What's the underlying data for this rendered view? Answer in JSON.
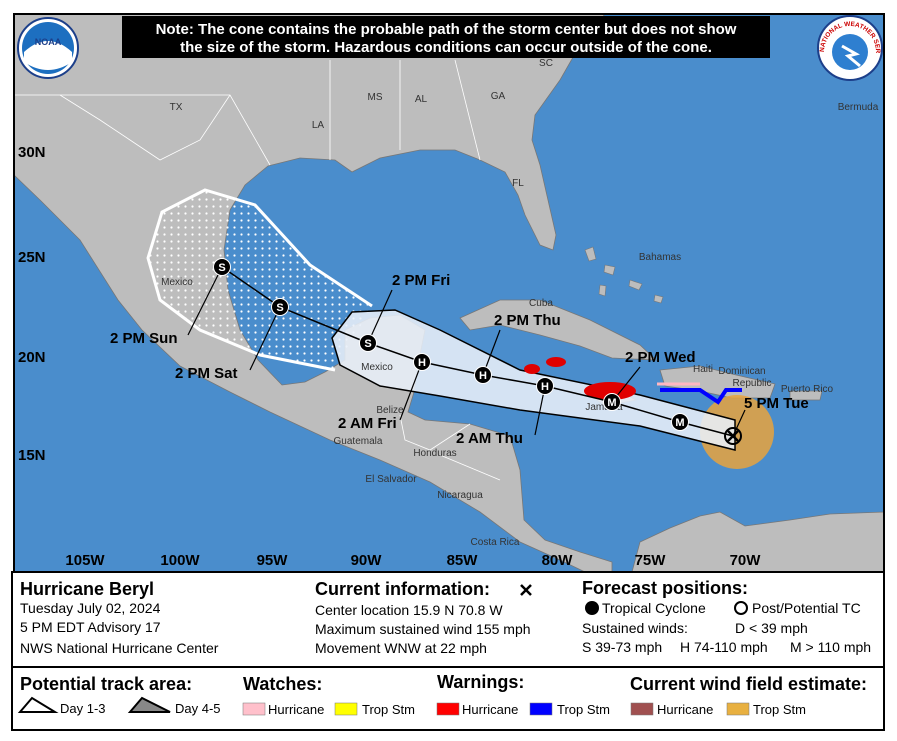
{
  "note": [
    "Note: The cone contains the probable path of the storm center but does not show",
    "the size of the storm. Hazardous conditions can occur outside of the cone."
  ],
  "logos": {
    "noaa": "NOAA",
    "nws": "NATIONAL WEATHER SERVICE"
  },
  "lat_labels": [
    "30N",
    "25N",
    "20N",
    "15N"
  ],
  "lon_labels": [
    "105W",
    "100W",
    "95W",
    "90W",
    "85W",
    "80W",
    "75W",
    "70W"
  ],
  "places": [
    "TX",
    "MS",
    "AL",
    "GA",
    "SC",
    "LA",
    "FL",
    "Mexico",
    "Bermuda",
    "Bahamas",
    "Cuba",
    "Haiti",
    "Dominican",
    "Republic",
    "Puerto Rico",
    "Mexico",
    "Belize",
    "Guatemala",
    "Honduras",
    "El Salvador",
    "Nicaragua",
    "Costa Rica",
    "Jamaica"
  ],
  "forecast_labels": [
    "2 PM Sun",
    "2 PM Sat",
    "2 PM Fri",
    "2 PM Thu",
    "2 PM Wed",
    "5 PM Tue",
    "2 AM Fri",
    "2 AM Thu"
  ],
  "point_codes": [
    "M",
    "M",
    "H",
    "H",
    "H",
    "S",
    "S",
    "S"
  ],
  "storm": {
    "name": "Hurricane Beryl",
    "date": "Tuesday July 02, 2024",
    "advisory": "5 PM EDT Advisory 17",
    "source": "NWS National Hurricane Center"
  },
  "current": {
    "title": "Current information:",
    "location": "Center location 15.9 N 70.8 W",
    "wind": "Maximum sustained wind 155 mph",
    "movement": "Movement WNW at 22 mph"
  },
  "forecast": {
    "title": "Forecast positions:",
    "tc": "Tropical Cyclone",
    "post": "Post/Potential TC",
    "winds": "Sustained winds:",
    "d": "D < 39 mph",
    "s": "S 39-73 mph",
    "h": "H 74-110 mph",
    "m": "M > 110 mph"
  },
  "track_area": {
    "title": "Potential track area:",
    "day13": "Day 1-3",
    "day45": "Day 4-5"
  },
  "watches": {
    "title": "Watches:",
    "hurricane": "Hurricane",
    "trop": "Trop Stm"
  },
  "warnings": {
    "title": "Warnings:",
    "hurricane": "Hurricane",
    "trop": "Trop Stm"
  },
  "wind_field": {
    "title": "Current wind field estimate:",
    "hurricane": "Hurricane",
    "trop": "Trop Stm"
  }
}
